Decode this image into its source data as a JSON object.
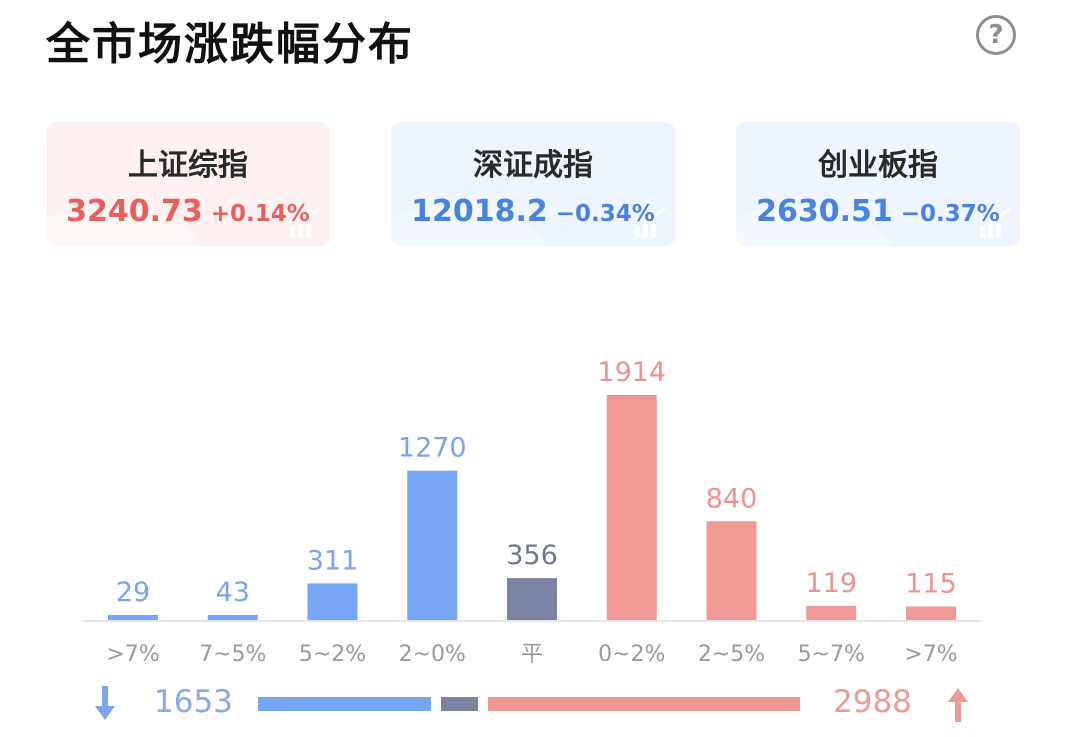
{
  "header": {
    "title": "全市场涨跌幅分布",
    "help_icon": "question-circle-icon",
    "help_label": "?"
  },
  "indices": [
    {
      "name": "上证综指",
      "value": "3240.73",
      "change": "+0.14%",
      "trend": "up",
      "color": "#e8605c"
    },
    {
      "name": "深证成指",
      "value": "12018.2",
      "change": "−0.34%",
      "trend": "down",
      "color": "#4a82e0"
    },
    {
      "name": "创业板指",
      "value": "2630.51",
      "change": "−0.37%",
      "trend": "down",
      "color": "#4a82e0"
    }
  ],
  "chart_data": {
    "type": "bar",
    "categories": [
      ">7%",
      "7~5%",
      "5~2%",
      "2~0%",
      "平",
      "0~2%",
      "2~5%",
      "5~7%",
      ">7%"
    ],
    "values": [
      29,
      43,
      311,
      1270,
      356,
      1914,
      840,
      119,
      115
    ],
    "direction": [
      "down",
      "down",
      "down",
      "down",
      "flat",
      "up",
      "up",
      "up",
      "up"
    ],
    "colors": {
      "down": "#77a6f7",
      "flat": "#7a84a2",
      "up": "#ef9a96"
    },
    "label_colors": {
      "down": "#7aa5ef",
      "flat": "#6f7893",
      "up": "#ee9490"
    },
    "grid": false,
    "legend": "none"
  },
  "summary": {
    "down_count": "1653",
    "up_count": "2988",
    "down_icon": "arrow-down-icon",
    "up_icon": "arrow-up-icon",
    "down_total": 1653,
    "flat_total": 356,
    "up_total": 2988
  }
}
